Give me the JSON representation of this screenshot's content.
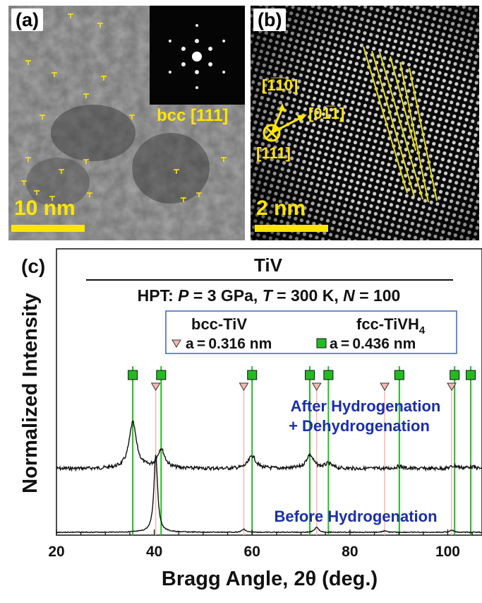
{
  "panel_a": {
    "label": "(a)",
    "scale_bar": "10 nm",
    "fft_label": "bcc [111]"
  },
  "panel_b": {
    "label": "(b)",
    "scale_bar": "2 nm",
    "dir_1": "[1̅1̅0]",
    "dir_2": "[01̅1]",
    "dir_3": "[111]"
  },
  "panel_c": {
    "label": "(c)",
    "title": "TiV",
    "subtitle_parts": [
      "HPT: ",
      "P",
      " = 3 GPa, ",
      "T",
      " = 300 K, ",
      "N",
      " = 100"
    ],
    "legend": {
      "bcc_name": "bcc-TiV",
      "bcc_param": "a = 0.316 nm",
      "fcc_name": "fcc-TiVH",
      "fcc_sub": "4",
      "fcc_param": "a = 0.436 nm",
      "bcc_color": "#f4b9b0",
      "fcc_color": "#22bb22"
    },
    "curve_labels": {
      "after_1": "After Hydrogenation",
      "after_2": "+ Dehydrogenation",
      "before": "Before Hydrogenation",
      "color": "#1a2fa8"
    }
  },
  "chart_data": {
    "type": "line",
    "xlabel": "Bragg Angle, 2θ (deg.)",
    "ylabel": "Normalized Intensity",
    "xlim": [
      20,
      107
    ],
    "xticks": [
      20,
      40,
      60,
      80,
      100
    ],
    "bcc_peak_positions": [
      40.3,
      58.3,
      73.2,
      87.1,
      100.8
    ],
    "fcc_peak_positions": [
      35.6,
      41.4,
      60.0,
      71.8,
      75.6,
      90.1,
      101.4,
      104.7
    ],
    "series": [
      {
        "name": "After Hydrogenation + Dehydrogenation",
        "peaks": [
          {
            "x": 35.6,
            "height": 1.0
          },
          {
            "x": 41.4,
            "height": 0.42
          },
          {
            "x": 60.0,
            "height": 0.28
          },
          {
            "x": 71.8,
            "height": 0.3
          },
          {
            "x": 75.6,
            "height": 0.1
          },
          {
            "x": 90.1,
            "height": 0.05
          },
          {
            "x": 101.4,
            "height": 0.06
          },
          {
            "x": 104.7,
            "height": 0.04
          }
        ]
      },
      {
        "name": "Before Hydrogenation",
        "peaks": [
          {
            "x": 40.3,
            "height": 1.0
          },
          {
            "x": 58.3,
            "height": 0.04
          },
          {
            "x": 73.2,
            "height": 0.07
          },
          {
            "x": 87.1,
            "height": 0.02
          },
          {
            "x": 100.8,
            "height": 0.03
          }
        ]
      }
    ]
  }
}
